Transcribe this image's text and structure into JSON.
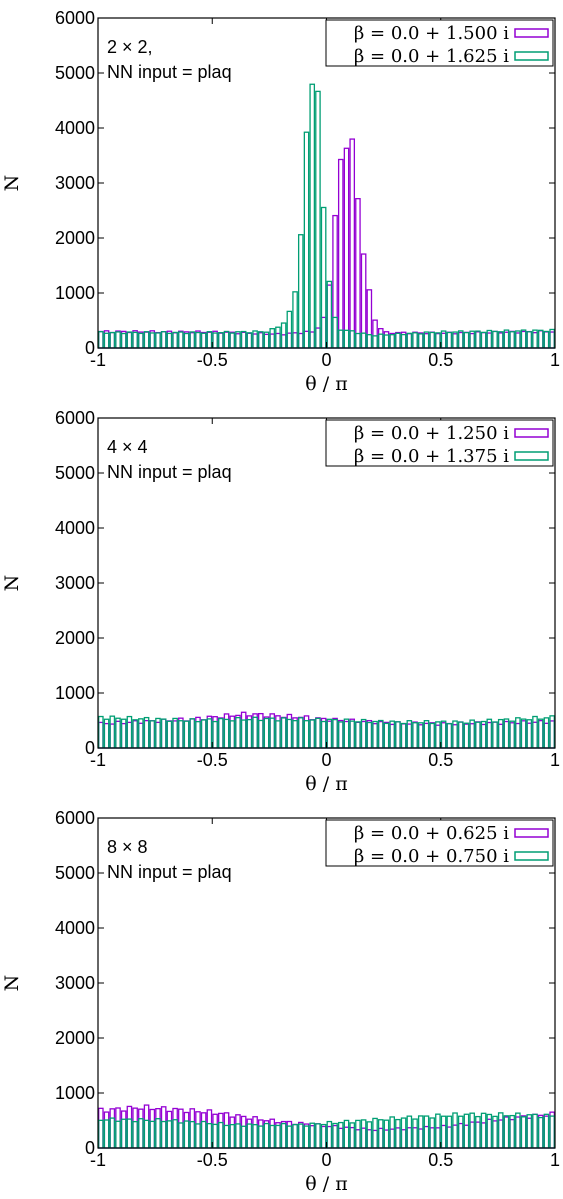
{
  "chart_data": [
    {
      "type": "histogram",
      "annotation": [
        "2 × 2,",
        "NN input = plaq"
      ],
      "xlabel": "θ / π",
      "ylabel": "N",
      "xlim": [
        -1,
        1
      ],
      "ylim": [
        0,
        6000
      ],
      "xticks": [
        "-1",
        "-0.5",
        "0",
        "0.5",
        "1"
      ],
      "yticks": [
        "0",
        "1000",
        "2000",
        "3000",
        "4000",
        "5000",
        "6000"
      ],
      "legend_position": "top-right",
      "bin_width": 0.025,
      "series": [
        {
          "name": "β = 0.0 + 1.500 i",
          "color": "#9400d3",
          "profile": [
            [
              -1.0,
              300
            ],
            [
              -0.5,
              290
            ],
            [
              -0.2,
              250
            ],
            [
              -0.05,
              300
            ],
            [
              0.0,
              600
            ],
            [
              0.05,
              3000
            ],
            [
              0.1,
              4150
            ],
            [
              0.15,
              2200
            ],
            [
              0.2,
              600
            ],
            [
              0.25,
              280
            ],
            [
              0.5,
              270
            ],
            [
              1.0,
              300
            ]
          ]
        },
        {
          "name": "β = 0.0 + 1.625 i",
          "color": "#009e73",
          "profile": [
            [
              -1.0,
              280
            ],
            [
              -0.5,
              280
            ],
            [
              -0.25,
              300
            ],
            [
              -0.17,
              500
            ],
            [
              -0.12,
              1400
            ],
            [
              -0.1,
              3000
            ],
            [
              -0.075,
              4700
            ],
            [
              -0.05,
              5450
            ],
            [
              -0.025,
              3400
            ],
            [
              0.0,
              1800
            ],
            [
              0.025,
              700
            ],
            [
              0.05,
              350
            ],
            [
              0.2,
              230
            ],
            [
              0.5,
              290
            ],
            [
              1.0,
              320
            ]
          ]
        }
      ]
    },
    {
      "type": "histogram",
      "annotation": [
        "4 × 4",
        "NN input = plaq"
      ],
      "xlabel": "θ / π",
      "ylabel": "N",
      "xlim": [
        -1,
        1
      ],
      "ylim": [
        0,
        6000
      ],
      "xticks": [
        "-1",
        "-0.5",
        "0",
        "0.5",
        "1"
      ],
      "yticks": [
        "0",
        "1000",
        "2000",
        "3000",
        "4000",
        "5000",
        "6000"
      ],
      "legend_position": "top-right",
      "bin_width": 0.025,
      "series": [
        {
          "name": "β = 0.0 + 1.250 i",
          "color": "#9400d3",
          "profile": [
            [
              -1.0,
              440
            ],
            [
              -0.6,
              520
            ],
            [
              -0.35,
              620
            ],
            [
              -0.1,
              560
            ],
            [
              0.0,
              520
            ],
            [
              0.3,
              450
            ],
            [
              0.5,
              440
            ],
            [
              0.8,
              460
            ],
            [
              1.0,
              480
            ]
          ]
        },
        {
          "name": "β = 0.0 + 1.375 i",
          "color": "#009e73",
          "profile": [
            [
              -1.0,
              560
            ],
            [
              -0.6,
              500
            ],
            [
              -0.3,
              530
            ],
            [
              0.0,
              510
            ],
            [
              0.3,
              470
            ],
            [
              0.6,
              470
            ],
            [
              1.0,
              560
            ]
          ]
        }
      ]
    },
    {
      "type": "histogram",
      "annotation": [
        "8 × 8",
        "NN input = plaq"
      ],
      "xlabel": "θ / π",
      "ylabel": "N",
      "xlim": [
        -1,
        1
      ],
      "ylim": [
        0,
        6000
      ],
      "xticks": [
        "-1",
        "-0.5",
        "0",
        "0.5",
        "1"
      ],
      "yticks": [
        "0",
        "1000",
        "2000",
        "3000",
        "4000",
        "5000",
        "6000"
      ],
      "legend_position": "top-right",
      "bin_width": 0.025,
      "series": [
        {
          "name": "β = 0.0 + 0.625 i",
          "color": "#9400d3",
          "profile": [
            [
              -1.0,
              680
            ],
            [
              -0.8,
              740
            ],
            [
              -0.5,
              650
            ],
            [
              -0.25,
              500
            ],
            [
              0.0,
              400
            ],
            [
              0.2,
              330
            ],
            [
              0.5,
              380
            ],
            [
              0.8,
              540
            ],
            [
              1.0,
              620
            ]
          ]
        },
        {
          "name": "β = 0.0 + 0.750 i",
          "color": "#009e73",
          "profile": [
            [
              -1.0,
              520
            ],
            [
              -0.7,
              500
            ],
            [
              -0.4,
              420
            ],
            [
              -0.1,
              420
            ],
            [
              0.1,
              480
            ],
            [
              0.35,
              550
            ],
            [
              0.6,
              610
            ],
            [
              0.85,
              600
            ],
            [
              1.0,
              580
            ]
          ]
        }
      ]
    }
  ]
}
